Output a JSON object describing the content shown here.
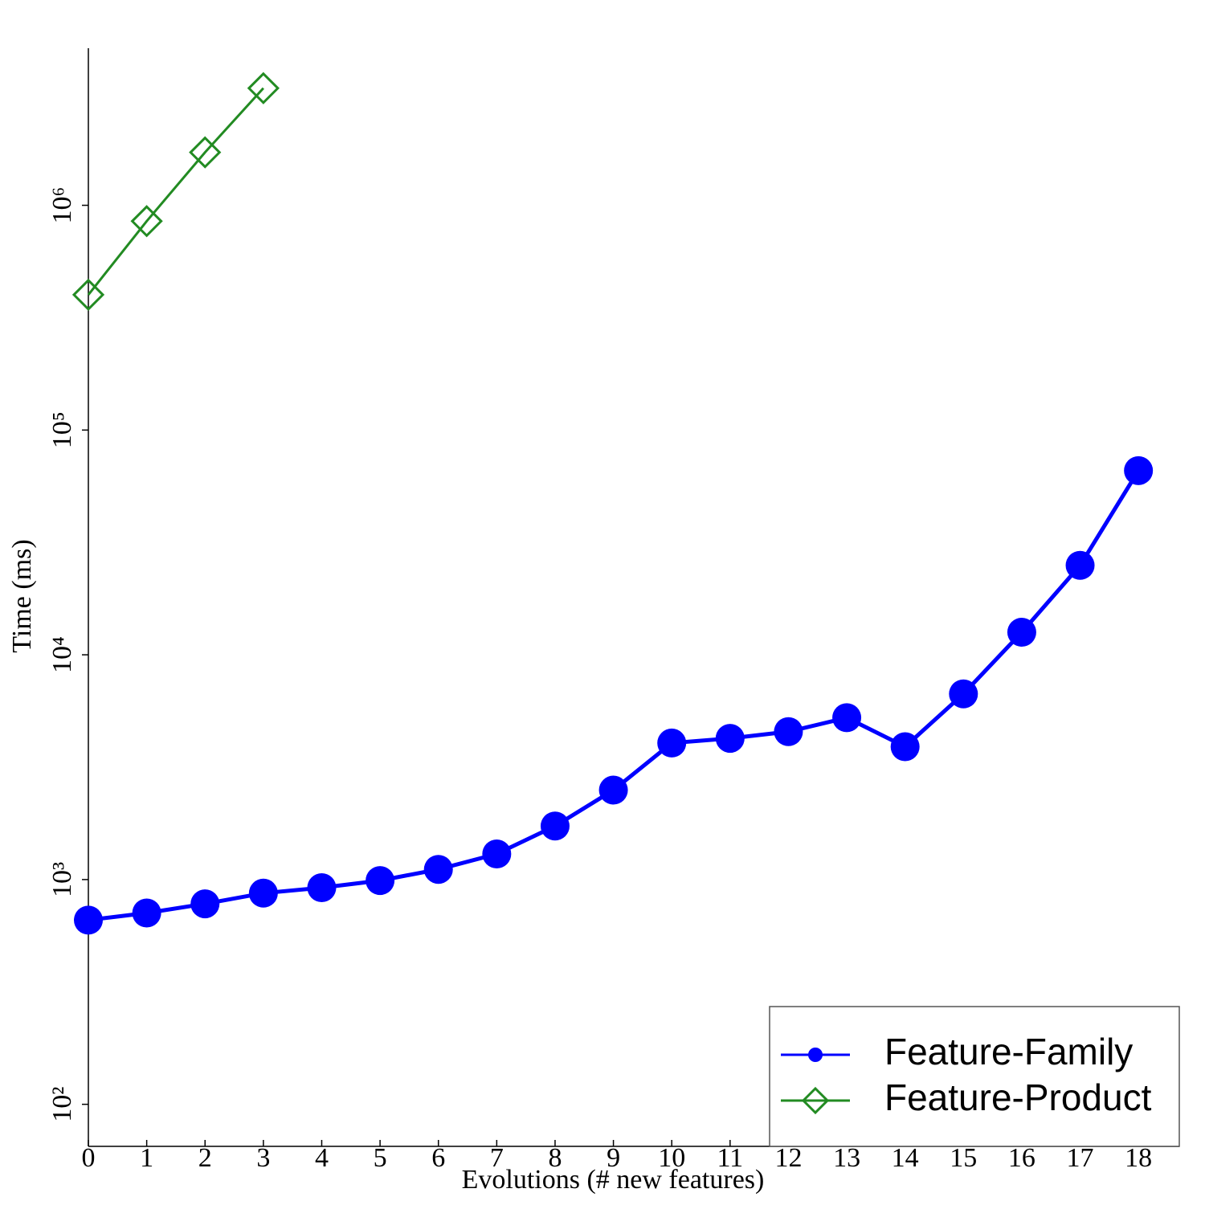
{
  "chart_data": {
    "type": "line",
    "x_label": "Evolutions (# new features)",
    "y_label": "Time (ms)",
    "x": [
      0,
      1,
      2,
      3,
      4,
      5,
      6,
      7,
      8,
      9,
      10,
      11,
      12,
      13,
      14,
      15,
      16,
      17,
      18
    ],
    "xlim": [
      0,
      18.7
    ],
    "xticks": [
      0,
      1,
      2,
      3,
      4,
      5,
      6,
      7,
      8,
      9,
      10,
      11,
      12,
      13,
      14,
      15,
      16,
      17,
      18
    ],
    "ylim": [
      65,
      5000000
    ],
    "log_y": true,
    "yticks": [
      {
        "value": 100,
        "label": "10²"
      },
      {
        "value": 1000,
        "label": "10³"
      },
      {
        "value": 10000,
        "label": "10⁴"
      },
      {
        "value": 100000,
        "label": "10⁵"
      },
      {
        "value": 1000000,
        "label": "10⁶"
      }
    ],
    "legend": "lower right",
    "series": [
      {
        "name": "Feature-Family",
        "color": "#0000ff",
        "marker": "circle",
        "values": [
          660,
          710,
          780,
          870,
          920,
          990,
          1110,
          1300,
          1730,
          2500,
          4050,
          4250,
          4550,
          5250,
          3900,
          6700,
          12600,
          25000,
          66000
        ]
      },
      {
        "name": "Feature-Product",
        "color": "#228b22",
        "marker": "diamond",
        "values": [
          400000,
          850000,
          1720000,
          3320000,
          null,
          null,
          null,
          null,
          null,
          null,
          null,
          null,
          null,
          null,
          null,
          null,
          null,
          null,
          null
        ]
      }
    ]
  }
}
